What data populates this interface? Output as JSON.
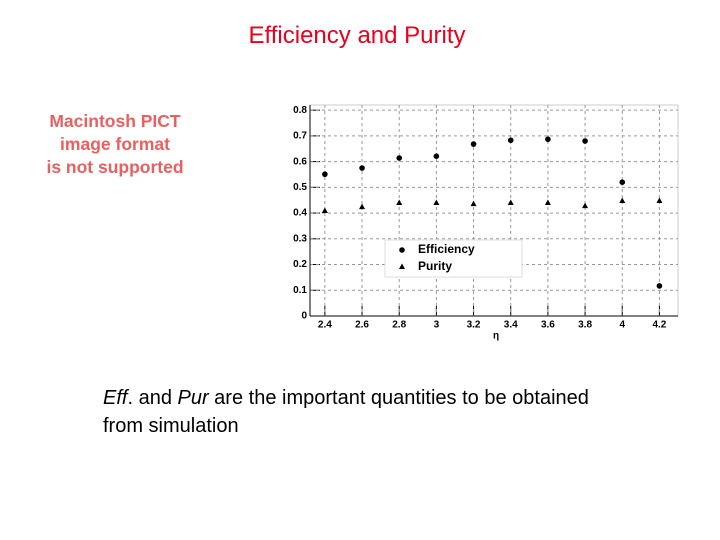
{
  "slide": {
    "title": "Efficiency and Purity",
    "placeholder": [
      "Macintosh PICT",
      "image format",
      "is not supported"
    ],
    "body": [
      "Eff",
      ". and ",
      "Pur",
      " are the important quantities to be obtained from simulation"
    ]
  },
  "chart_data": {
    "type": "scatter",
    "xlabel": "η",
    "x": [
      2.4,
      2.6,
      2.8,
      3.0,
      3.2,
      3.4,
      3.6,
      3.8,
      4.0,
      4.2
    ],
    "series": [
      {
        "name": "Efficiency",
        "color": "#000000",
        "marker": "circle",
        "values": [
          0.551,
          0.575,
          0.614,
          0.621,
          0.668,
          0.683,
          0.687,
          0.68,
          0.52,
          0.117
        ]
      },
      {
        "name": "Purity",
        "color": "#000000",
        "marker": "triangle",
        "values": [
          0.408,
          0.423,
          0.439,
          0.439,
          0.435,
          0.439,
          0.439,
          0.427,
          0.447,
          0.447
        ]
      }
    ],
    "xlim": [
      2.32,
      4.3
    ],
    "ylim": [
      0,
      0.82
    ],
    "xticks": [
      2.4,
      2.6,
      2.8,
      3,
      3.2,
      3.4,
      3.6,
      3.8,
      4,
      4.2
    ],
    "yticks": [
      0,
      0.1,
      0.2,
      0.3,
      0.4,
      0.5,
      0.6,
      0.7,
      0.8
    ],
    "grid": true,
    "legend": "center"
  }
}
